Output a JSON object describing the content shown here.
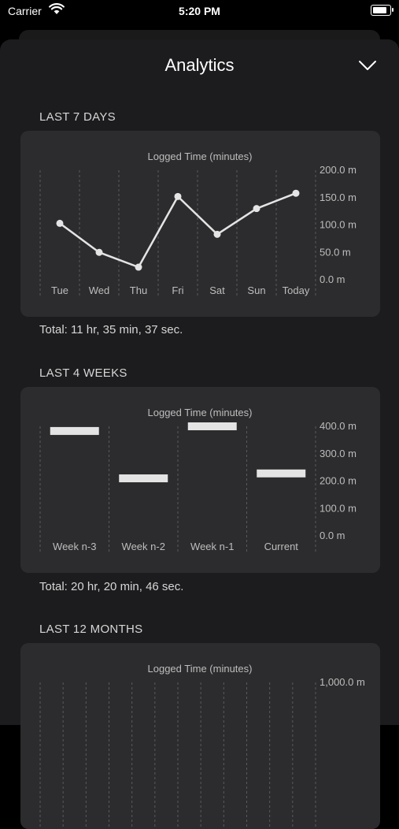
{
  "status_bar": {
    "carrier": "Carrier",
    "time": "5:20 PM",
    "battery_level": 1.0
  },
  "sheet": {
    "title": "Analytics"
  },
  "sections": [
    {
      "label": "LAST 7 DAYS",
      "total": "Total: 11 hr, 35 min, 37 sec."
    },
    {
      "label": "LAST 4 WEEKS",
      "total": "Total: 20 hr, 20 min, 46 sec."
    },
    {
      "label": "LAST 12 MONTHS"
    }
  ],
  "colors": {
    "background": "#000000",
    "sheet": "#1c1c1e",
    "card": "#2c2c2e",
    "series": "#e4e4e4",
    "muted": "#bdbdbd"
  },
  "chart_data": [
    {
      "type": "line",
      "title": "Logged Time (minutes)",
      "categories": [
        "Tue",
        "Wed",
        "Thu",
        "Fri",
        "Sat",
        "Sun",
        "Today"
      ],
      "values": [
        103,
        50,
        23,
        152,
        83,
        130,
        158
      ],
      "yticks": [
        "0.0 m",
        "50.0 m",
        "100.0 m",
        "150.0 m",
        "200.0 m"
      ],
      "ylim": [
        0,
        200
      ],
      "grid": "vertical-dashed",
      "axis": "right"
    },
    {
      "type": "bar",
      "title": "Logged Time (minutes)",
      "categories": [
        "Week n-3",
        "Week n-2",
        "Week n-1",
        "Current"
      ],
      "values": [
        383,
        210,
        400,
        228
      ],
      "yticks": [
        "0.0 m",
        "100.0 m",
        "200.0 m",
        "300.0 m",
        "400.0 m"
      ],
      "ylim": [
        0,
        400
      ],
      "grid": "vertical-dashed",
      "axis": "right"
    },
    {
      "type": "bar",
      "title": "Logged Time (minutes)",
      "yticks": [
        "1,000.0 m"
      ],
      "ylim": [
        0,
        1000
      ],
      "grid": "vertical-dashed",
      "axis": "right"
    }
  ]
}
